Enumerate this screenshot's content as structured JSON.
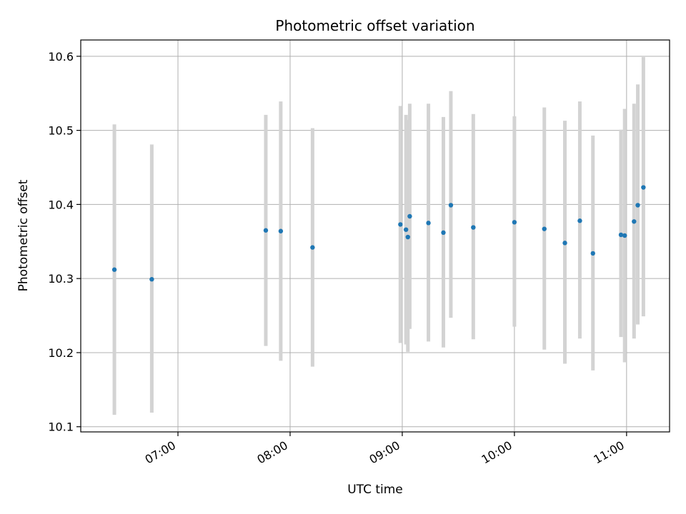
{
  "chart_data": {
    "type": "scatter",
    "title": "Photometric offset variation",
    "xlabel": "UTC time",
    "ylabel": "Photometric offset",
    "grid": true,
    "x_unit": "UTC time (HH:MM)",
    "xlim": [
      "06:08",
      "11:23"
    ],
    "ylim": [
      10.093,
      10.622
    ],
    "x_ticks": [
      "07:00",
      "08:00",
      "09:00",
      "10:00",
      "11:00"
    ],
    "y_ticks": [
      10.1,
      10.2,
      10.3,
      10.4,
      10.5,
      10.6
    ],
    "y_tick_labels": [
      "10.1",
      "10.2",
      "10.3",
      "10.4",
      "10.5",
      "10.6"
    ],
    "colors": {
      "point": "#1f77b4",
      "errorbar": "#d3d3d3",
      "grid": "#b0b0b0"
    },
    "points": [
      {
        "x": "06:26",
        "y": 10.312,
        "lo": 10.116,
        "hi": 10.508
      },
      {
        "x": "06:46",
        "y": 10.299,
        "lo": 10.119,
        "hi": 10.481
      },
      {
        "x": "07:47",
        "y": 10.365,
        "lo": 10.209,
        "hi": 10.521
      },
      {
        "x": "07:55",
        "y": 10.364,
        "lo": 10.189,
        "hi": 10.539
      },
      {
        "x": "08:12",
        "y": 10.342,
        "lo": 10.181,
        "hi": 10.503
      },
      {
        "x": "08:59",
        "y": 10.373,
        "lo": 10.213,
        "hi": 10.533
      },
      {
        "x": "09:02",
        "y": 10.366,
        "lo": 10.211,
        "hi": 10.521
      },
      {
        "x": "09:03",
        "y": 10.356,
        "lo": 10.201,
        "hi": 10.514
      },
      {
        "x": "09:04",
        "y": 10.384,
        "lo": 10.232,
        "hi": 10.536
      },
      {
        "x": "09:14",
        "y": 10.375,
        "lo": 10.215,
        "hi": 10.536
      },
      {
        "x": "09:22",
        "y": 10.362,
        "lo": 10.207,
        "hi": 10.518
      },
      {
        "x": "09:26",
        "y": 10.399,
        "lo": 10.247,
        "hi": 10.553
      },
      {
        "x": "09:38",
        "y": 10.369,
        "lo": 10.218,
        "hi": 10.522
      },
      {
        "x": "10:00",
        "y": 10.376,
        "lo": 10.235,
        "hi": 10.519
      },
      {
        "x": "10:16",
        "y": 10.367,
        "lo": 10.204,
        "hi": 10.531
      },
      {
        "x": "10:27",
        "y": 10.348,
        "lo": 10.185,
        "hi": 10.513
      },
      {
        "x": "10:35",
        "y": 10.378,
        "lo": 10.219,
        "hi": 10.539
      },
      {
        "x": "10:42",
        "y": 10.334,
        "lo": 10.176,
        "hi": 10.493
      },
      {
        "x": "10:57",
        "y": 10.359,
        "lo": 10.221,
        "hi": 10.501
      },
      {
        "x": "10:59",
        "y": 10.358,
        "lo": 10.187,
        "hi": 10.529
      },
      {
        "x": "11:04",
        "y": 10.377,
        "lo": 10.219,
        "hi": 10.536
      },
      {
        "x": "11:06",
        "y": 10.399,
        "lo": 10.238,
        "hi": 10.562
      },
      {
        "x": "11:09",
        "y": 10.423,
        "lo": 10.249,
        "hi": 10.599
      }
    ]
  }
}
